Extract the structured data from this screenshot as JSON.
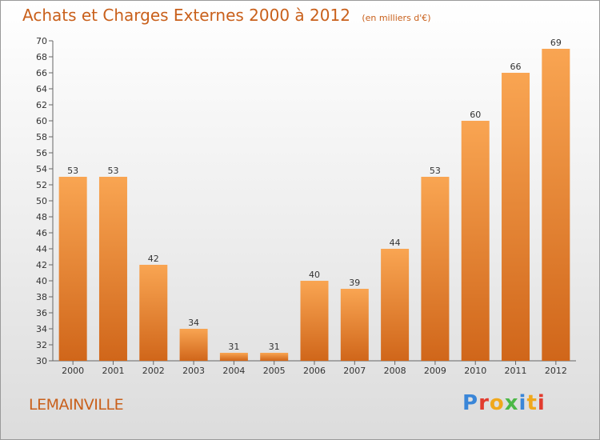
{
  "header": {
    "title": "Achats et Charges Externes 2000 à 2012",
    "unit": "(en milliers d'€)"
  },
  "footer": {
    "place": "LEMAINVILLE",
    "brand": "Proxiti"
  },
  "colors": {
    "title": "#c9601b",
    "bar_top": "#f9a552",
    "bar_bottom": "#d0661a"
  },
  "chart_data": {
    "type": "bar",
    "title": "Achats et Charges Externes 2000 à 2012",
    "subtitle": "(en milliers d'€)",
    "categories": [
      "2000",
      "2001",
      "2002",
      "2003",
      "2004",
      "2005",
      "2006",
      "2007",
      "2008",
      "2009",
      "2010",
      "2011",
      "2012"
    ],
    "values": [
      53,
      53,
      42,
      34,
      31,
      31,
      40,
      39,
      44,
      53,
      60,
      66,
      69
    ],
    "ylim": [
      30,
      70
    ],
    "yticks": [
      30,
      32,
      34,
      36,
      38,
      40,
      42,
      44,
      46,
      48,
      50,
      52,
      54,
      56,
      58,
      60,
      62,
      64,
      66,
      68,
      70
    ],
    "grid": false,
    "data_labels": true
  }
}
